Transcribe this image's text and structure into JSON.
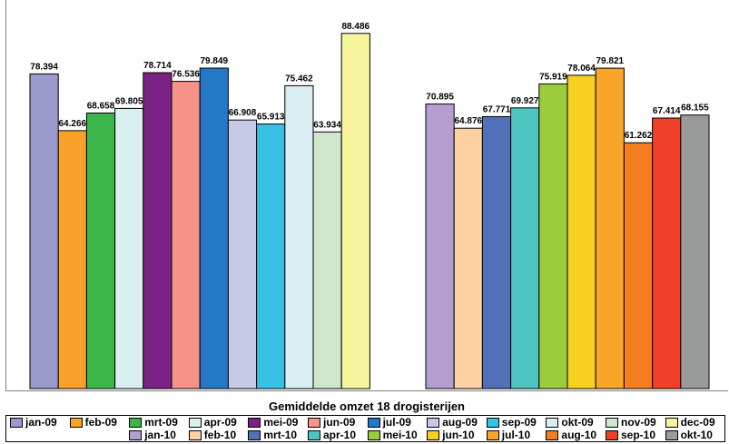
{
  "chart_data": {
    "type": "bar",
    "xlabel": "Gemiddelde omzet 18 drogisterijen",
    "ylim": [
      0,
      95000
    ],
    "grid": false,
    "legend_position": "bottom",
    "groups": [
      {
        "series": [
          {
            "name": "jan-09",
            "value": 78394,
            "label": "78.394",
            "color": "#9999CC"
          },
          {
            "name": "feb-09",
            "value": 64266,
            "label": "64.266",
            "color": "#F9A12A"
          },
          {
            "name": "mrt-09",
            "value": 68658,
            "label": "68.658",
            "color": "#3CB64A"
          },
          {
            "name": "apr-09",
            "value": 69805,
            "label": "69.805",
            "color": "#D9F0F1"
          },
          {
            "name": "mei-09",
            "value": 78714,
            "label": "78.714",
            "color": "#7B2384"
          },
          {
            "name": "jun-09",
            "value": 76536,
            "label": "76.536",
            "color": "#F59388"
          },
          {
            "name": "jul-09",
            "value": 79849,
            "label": "79.849",
            "color": "#2478C5"
          },
          {
            "name": "aug-09",
            "value": 66908,
            "label": "66.908",
            "color": "#C7C7E6"
          },
          {
            "name": "sep-09",
            "value": 65913,
            "label": "65.913",
            "color": "#37C2E3"
          },
          {
            "name": "okt-09",
            "value": 75462,
            "label": "75.462",
            "color": "#D8EEF2"
          },
          {
            "name": "nov-09",
            "value": 63934,
            "label": "63.934",
            "color": "#CFE6CC"
          },
          {
            "name": "dec-09",
            "value": 88486,
            "label": "88.486",
            "color": "#F7F49E"
          }
        ]
      },
      {
        "series": [
          {
            "name": "jan-10",
            "value": 70895,
            "label": "70.895",
            "color": "#B49ECF"
          },
          {
            "name": "feb-10",
            "value": 64876,
            "label": "64.876",
            "color": "#FDD1A2"
          },
          {
            "name": "mrt-10",
            "value": 67771,
            "label": "67.771",
            "color": "#5270B8"
          },
          {
            "name": "apr-10",
            "value": 69927,
            "label": "69.927",
            "color": "#4FC5C2"
          },
          {
            "name": "mei-10",
            "value": 75919,
            "label": "75.919",
            "color": "#9BCC3C"
          },
          {
            "name": "jun-10",
            "value": 78064,
            "label": "78.064",
            "color": "#F8D021"
          },
          {
            "name": "jul-10",
            "value": 79821,
            "label": "79.821",
            "color": "#F8A52A"
          },
          {
            "name": "aug-10",
            "value": 61262,
            "label": "61.262",
            "color": "#F47D20"
          },
          {
            "name": "sep-10",
            "value": 67414,
            "label": "67.414",
            "color": "#EE4127"
          },
          {
            "name": "okt-10",
            "value": 68155,
            "label": "68.155",
            "color": "#999B9B"
          }
        ]
      }
    ],
    "legend": [
      "jan-09",
      "feb-09",
      "mrt-09",
      "apr-09",
      "mei-09",
      "jun-09",
      "jul-09",
      "aug-09",
      "sep-09",
      "okt-09",
      "nov-09",
      "dec-09",
      "jan-10",
      "feb-10",
      "mrt-10",
      "apr-10",
      "mei-10",
      "jun-10",
      "jul-10",
      "aug-10",
      "sep-10",
      "okt-10"
    ]
  }
}
